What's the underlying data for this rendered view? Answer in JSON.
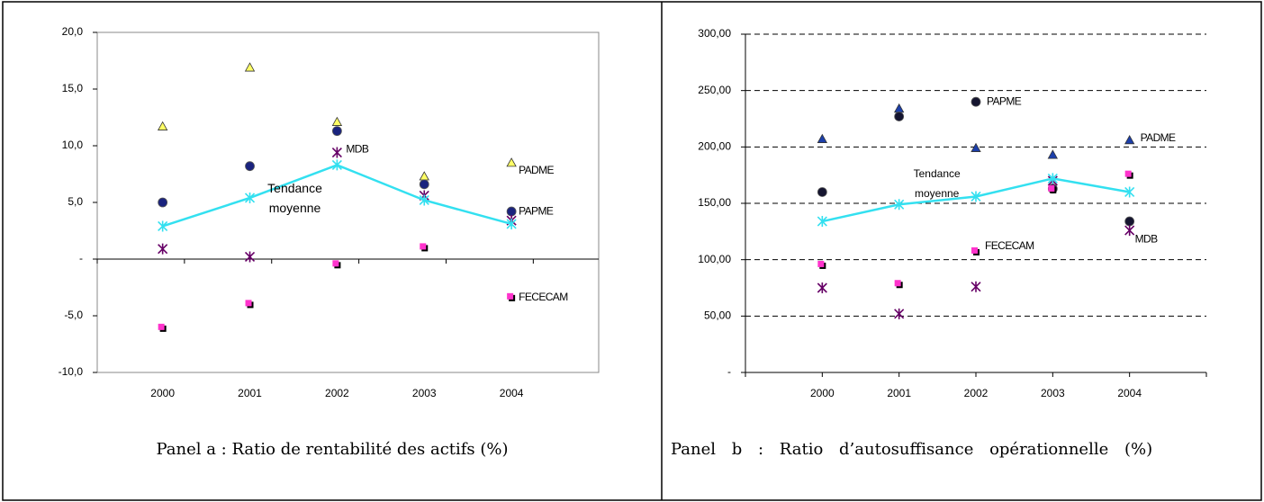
{
  "chart_data": [
    {
      "type": "scatter",
      "caption": "Panel a : Ratio de rentabilité des actifs (%)",
      "categories": [
        "2000",
        "2001",
        "2002",
        "2003",
        "2004"
      ],
      "ylim": [
        -10,
        20
      ],
      "yticks": [
        {
          "value": -10,
          "label": "-10,0"
        },
        {
          "value": -5,
          "label": "-5,0"
        },
        {
          "value": 0,
          "label": "-"
        },
        {
          "value": 5,
          "label": "5,0"
        },
        {
          "value": 10,
          "label": "10,0"
        },
        {
          "value": 15,
          "label": "15,0"
        },
        {
          "value": 20,
          "label": "20,0"
        }
      ],
      "grid": false,
      "series": [
        {
          "name": "PADME",
          "color": "#ffff66",
          "marker": "triangle",
          "values": [
            11.7,
            16.9,
            12.1,
            7.3,
            8.5
          ]
        },
        {
          "name": "PAPME",
          "color": "#1a237e",
          "marker": "circle",
          "values": [
            5.0,
            8.2,
            11.3,
            6.6,
            4.2
          ]
        },
        {
          "name": "MDB",
          "color": "#660066",
          "marker": "star",
          "values": [
            0.9,
            0.2,
            9.4,
            5.6,
            3.4
          ]
        },
        {
          "name": "FECECAM",
          "color": "#ff33cc",
          "marker": "square",
          "values": [
            -6.1,
            -4.0,
            -0.5,
            1.0,
            -3.4
          ]
        },
        {
          "name": "Tendance moyenne",
          "color": "#33e0f0",
          "marker": "star",
          "line": true,
          "values": [
            2.9,
            5.4,
            8.3,
            5.2,
            3.1
          ]
        }
      ]
    },
    {
      "type": "scatter",
      "caption": "Panel b : Ratio d’autosuffisance opérationnelle (%)",
      "categories": [
        "2000",
        "2001",
        "2002",
        "2003",
        "2004"
      ],
      "ylim": [
        0,
        300
      ],
      "yticks": [
        {
          "value": 0,
          "label": "-"
        },
        {
          "value": 50,
          "label": "50,00"
        },
        {
          "value": 100,
          "label": "100,00"
        },
        {
          "value": 150,
          "label": "150,00"
        },
        {
          "value": 200,
          "label": "200,00"
        },
        {
          "value": 250,
          "label": "250,00"
        },
        {
          "value": 300,
          "label": "300,00"
        }
      ],
      "grid": true,
      "series": [
        {
          "name": "PADME",
          "color": "#1c3faa",
          "marker": "triangle",
          "values": [
            207,
            234,
            199,
            193,
            206
          ]
        },
        {
          "name": "PAPME",
          "color": "#151530",
          "marker": "circle",
          "values": [
            160,
            227,
            240,
            163,
            134
          ]
        },
        {
          "name": "MDB",
          "color": "#660066",
          "marker": "star",
          "values": [
            75,
            52,
            76,
            170,
            126
          ]
        },
        {
          "name": "FECECAM",
          "color": "#ff33cc",
          "marker": "square",
          "values": [
            95,
            78,
            107,
            162,
            175
          ]
        },
        {
          "name": "Tendance moyenne",
          "color": "#33e0f0",
          "marker": "star",
          "line": true,
          "values": [
            134,
            149,
            156,
            172,
            160
          ]
        }
      ]
    }
  ]
}
